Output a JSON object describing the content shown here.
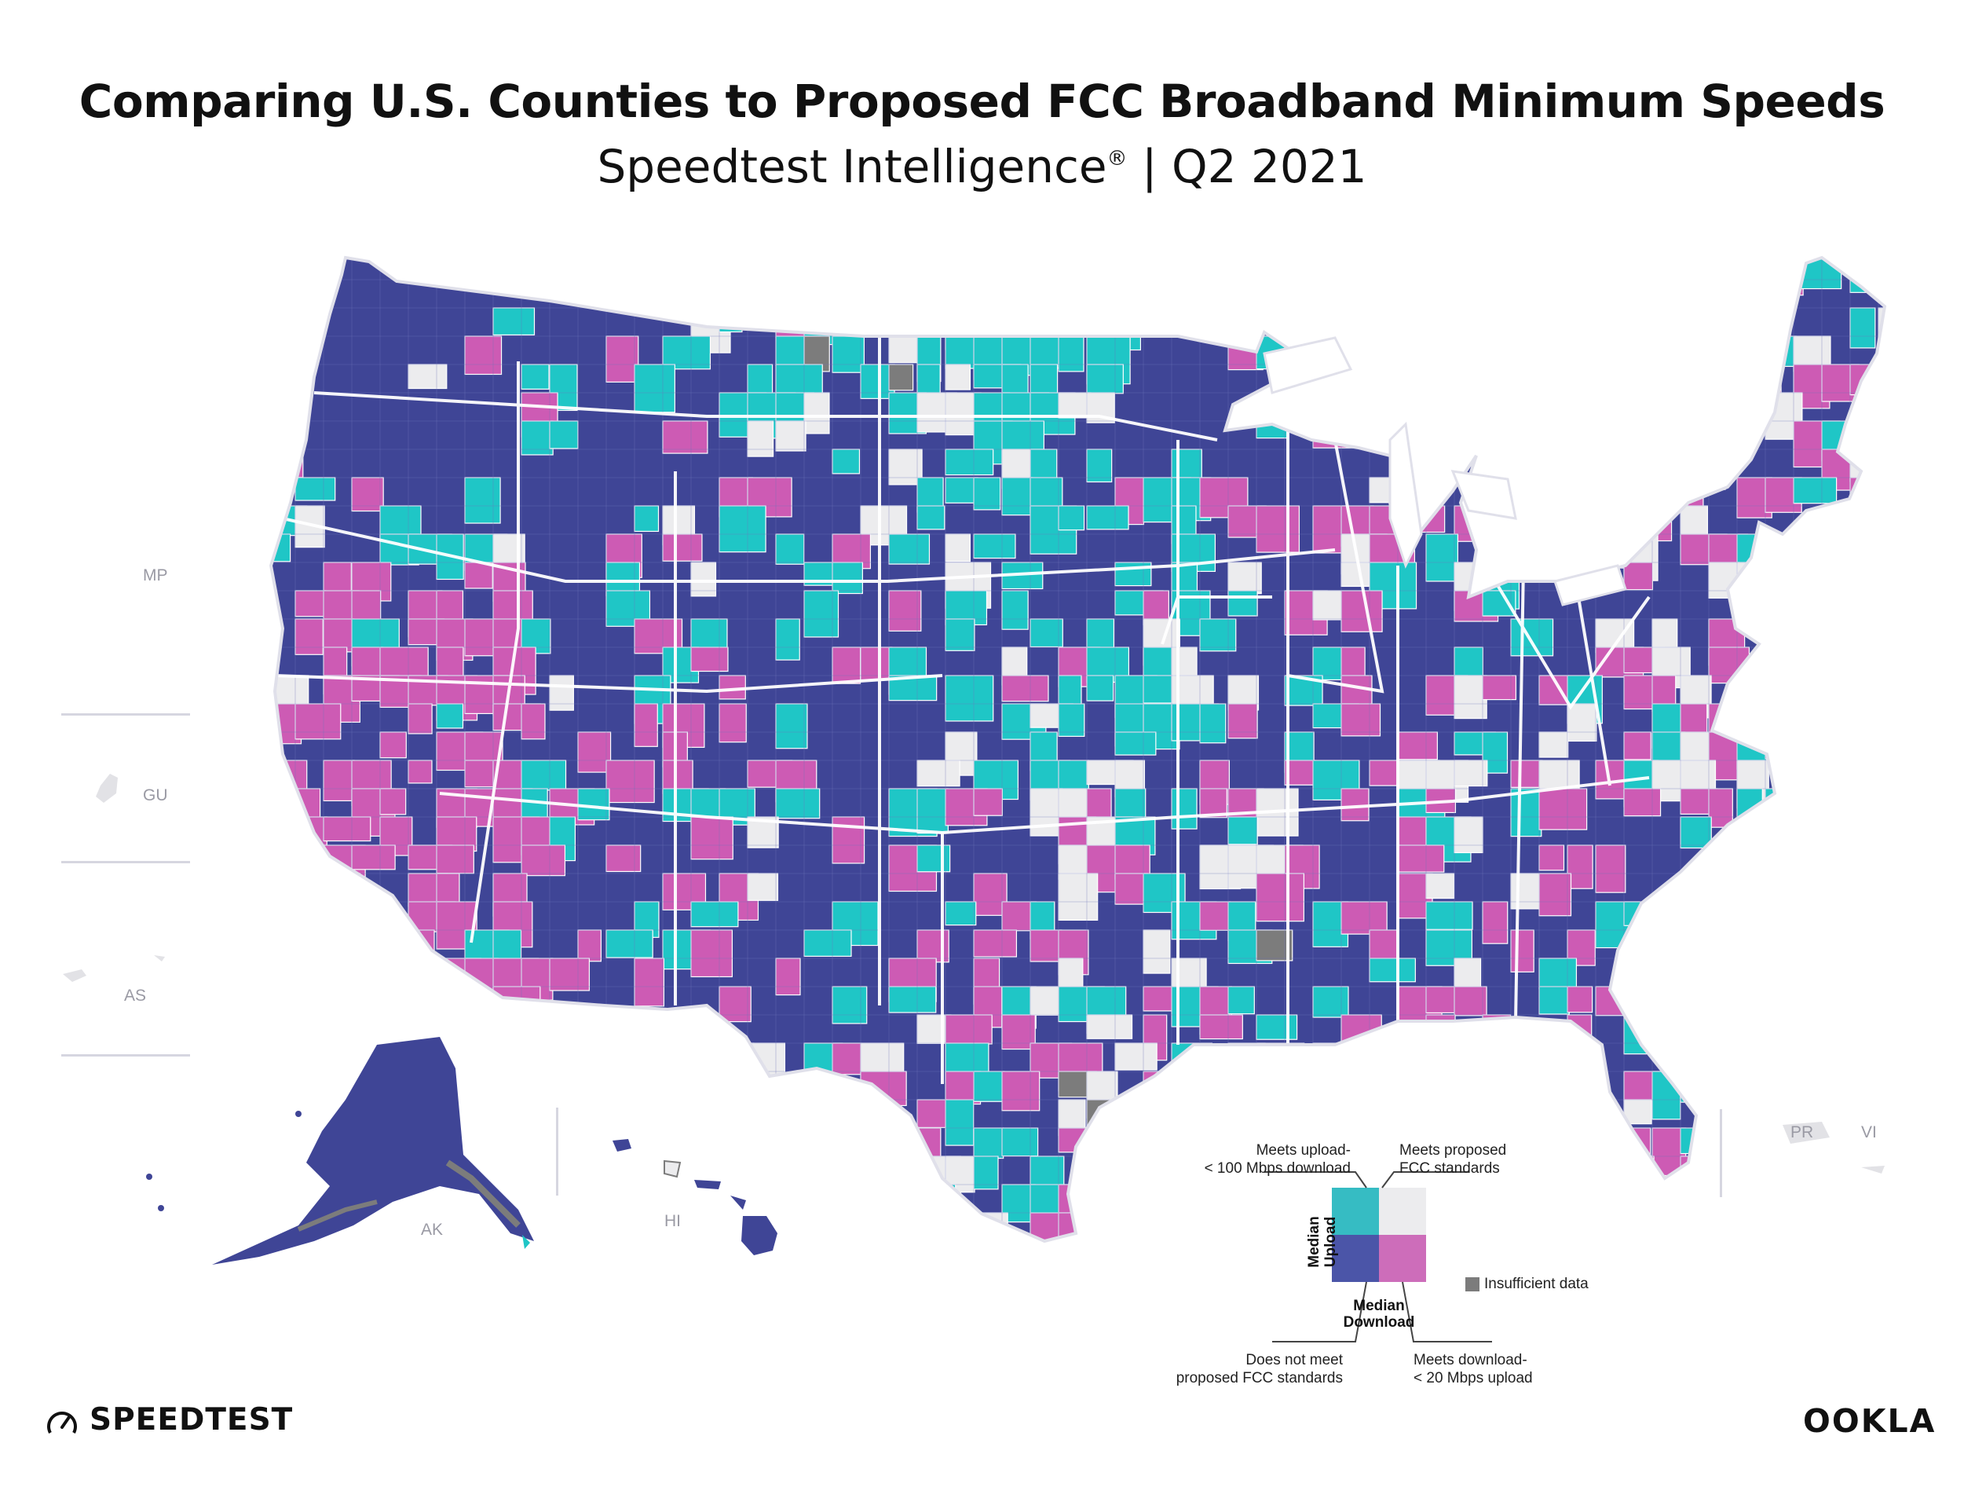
{
  "header": {
    "title": "Comparing U.S. Counties to Proposed FCC Broadband Minimum Speeds",
    "subtitle_main": "Speedtest Intelligence",
    "subtitle_mark": "®",
    "subtitle_period": " | Q2 2021"
  },
  "colors": {
    "does_not_meet": "#3f4596",
    "meets_upload_only": "#1fc6c6",
    "meets_download_only": "#cd5bb4",
    "meets_standards": "#ececee",
    "insufficient_data": "#7c7c7c",
    "border": "#ffffff"
  },
  "territories": [
    {
      "code": "MP"
    },
    {
      "code": "GU"
    },
    {
      "code": "AS"
    },
    {
      "code": "AK"
    },
    {
      "code": "HI"
    },
    {
      "code": "PR"
    },
    {
      "code": "VI"
    }
  ],
  "legend": {
    "meets_upload": "Meets upload-\n< 100 Mbps download",
    "meets_standards": "Meets proposed\nFCC standards",
    "does_not_meet": "Does not meet\nproposed FCC standards",
    "meets_download": "Meets download-\n< 20 Mbps upload",
    "insufficient": "Insufficient data",
    "y_axis": "Median\nUpload",
    "x_axis": "Median\nDownload"
  },
  "brand": {
    "left": "SPEEDTEST",
    "right": "OOKLA"
  }
}
